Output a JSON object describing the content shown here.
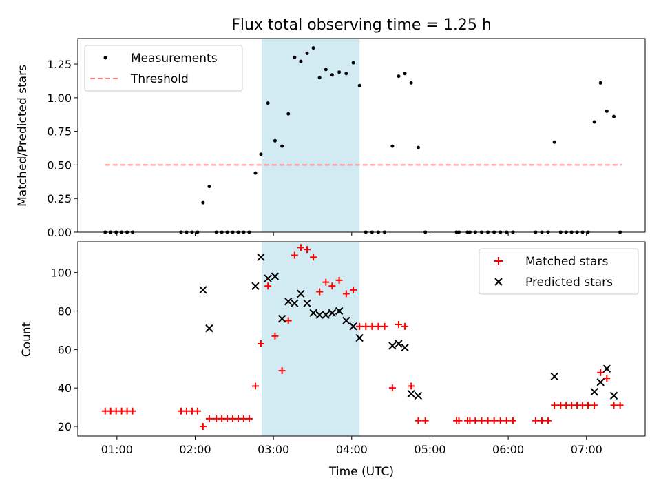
{
  "title": "Flux total observing time = 1.25 h",
  "colors": {
    "measurement": "#000000",
    "threshold": "#ff7f7f",
    "matched": "#ff0000",
    "predicted": "#000000",
    "shade": "#add8e6"
  },
  "chart_data": [
    {
      "type": "scatter",
      "panel": "top",
      "ylabel": "Matched/Predicted stars",
      "xlim": [
        0.5,
        7.75
      ],
      "ylim": [
        0,
        1.44
      ],
      "yticks": [
        0,
        0.25,
        0.5,
        0.75,
        1.0,
        1.25
      ],
      "ytick_labels": [
        "0.00",
        "0.25",
        "0.50",
        "0.75",
        "1.00",
        "1.25"
      ],
      "shaded_span": [
        2.85,
        4.1
      ],
      "legend": {
        "placement": "top-left",
        "entries": [
          "Measurements",
          "Threshold"
        ]
      },
      "threshold": {
        "value": 0.5,
        "x_range": [
          0.85,
          7.45
        ]
      },
      "series": [
        {
          "name": "Measurements",
          "marker": "dot",
          "points": [
            [
              0.85,
              0
            ],
            [
              0.92,
              0
            ],
            [
              0.99,
              0
            ],
            [
              1.06,
              0
            ],
            [
              1.13,
              0
            ],
            [
              1.2,
              0
            ],
            [
              1.82,
              0
            ],
            [
              1.89,
              0
            ],
            [
              1.96,
              0
            ],
            [
              2.03,
              0
            ],
            [
              2.1,
              0.22
            ],
            [
              2.18,
              0.34
            ],
            [
              2.27,
              0
            ],
            [
              2.34,
              0
            ],
            [
              2.41,
              0
            ],
            [
              2.48,
              0
            ],
            [
              2.55,
              0
            ],
            [
              2.62,
              0
            ],
            [
              2.69,
              0
            ],
            [
              2.77,
              0.44
            ],
            [
              2.84,
              0.58
            ],
            [
              2.93,
              0.96
            ],
            [
              3.02,
              0.68
            ],
            [
              3.11,
              0.64
            ],
            [
              3.19,
              0.88
            ],
            [
              3.27,
              1.3
            ],
            [
              3.35,
              1.27
            ],
            [
              3.43,
              1.33
            ],
            [
              3.51,
              1.37
            ],
            [
              3.59,
              1.15
            ],
            [
              3.67,
              1.21
            ],
            [
              3.75,
              1.17
            ],
            [
              3.84,
              1.19
            ],
            [
              3.93,
              1.18
            ],
            [
              4.02,
              1.26
            ],
            [
              4.1,
              1.09
            ],
            [
              4.18,
              0
            ],
            [
              4.26,
              0
            ],
            [
              4.34,
              0
            ],
            [
              4.42,
              0
            ],
            [
              4.52,
              0.64
            ],
            [
              4.6,
              1.16
            ],
            [
              4.68,
              1.18
            ],
            [
              4.76,
              1.11
            ],
            [
              4.85,
              0.63
            ],
            [
              4.94,
              0
            ],
            [
              5.34,
              0
            ],
            [
              5.37,
              0
            ],
            [
              5.48,
              0
            ],
            [
              5.51,
              0
            ],
            [
              5.58,
              0
            ],
            [
              5.66,
              0
            ],
            [
              5.74,
              0
            ],
            [
              5.82,
              0
            ],
            [
              5.9,
              0
            ],
            [
              5.98,
              0
            ],
            [
              6.06,
              0
            ],
            [
              6.35,
              0
            ],
            [
              6.43,
              0
            ],
            [
              6.51,
              0
            ],
            [
              6.59,
              0.67
            ],
            [
              6.67,
              0
            ],
            [
              6.74,
              0
            ],
            [
              6.81,
              0
            ],
            [
              6.88,
              0
            ],
            [
              6.95,
              0
            ],
            [
              7.02,
              0
            ],
            [
              7.1,
              0.82
            ],
            [
              7.18,
              1.11
            ],
            [
              7.26,
              0.9
            ],
            [
              7.35,
              0.86
            ],
            [
              7.43,
              0
            ]
          ]
        }
      ]
    },
    {
      "type": "scatter",
      "panel": "bottom",
      "xlabel": "Time (UTC)",
      "ylabel": "Count",
      "xlim": [
        0.5,
        7.75
      ],
      "ylim": [
        15,
        116
      ],
      "yticks": [
        20,
        40,
        60,
        80,
        100
      ],
      "xticks": [
        1,
        2,
        3,
        4,
        5,
        6,
        7
      ],
      "xtick_labels": [
        "01:00",
        "02:00",
        "03:00",
        "04:00",
        "05:00",
        "06:00",
        "07:00"
      ],
      "shaded_span": [
        2.85,
        4.1
      ],
      "legend": {
        "placement": "top-right",
        "entries": [
          "Matched stars",
          "Predicted stars"
        ]
      },
      "series": [
        {
          "name": "Matched stars",
          "marker": "plus",
          "points": [
            [
              0.85,
              28
            ],
            [
              0.92,
              28
            ],
            [
              0.99,
              28
            ],
            [
              1.06,
              28
            ],
            [
              1.13,
              28
            ],
            [
              1.2,
              28
            ],
            [
              1.82,
              28
            ],
            [
              1.89,
              28
            ],
            [
              1.96,
              28
            ],
            [
              2.03,
              28
            ],
            [
              2.1,
              20
            ],
            [
              2.18,
              24
            ],
            [
              2.27,
              24
            ],
            [
              2.34,
              24
            ],
            [
              2.41,
              24
            ],
            [
              2.48,
              24
            ],
            [
              2.55,
              24
            ],
            [
              2.62,
              24
            ],
            [
              2.69,
              24
            ],
            [
              2.77,
              41
            ],
            [
              2.84,
              63
            ],
            [
              2.93,
              93
            ],
            [
              3.02,
              67
            ],
            [
              3.11,
              49
            ],
            [
              3.19,
              75
            ],
            [
              3.27,
              109
            ],
            [
              3.35,
              113
            ],
            [
              3.43,
              112
            ],
            [
              3.51,
              108
            ],
            [
              3.59,
              90
            ],
            [
              3.67,
              95
            ],
            [
              3.75,
              93
            ],
            [
              3.84,
              96
            ],
            [
              3.93,
              89
            ],
            [
              4.02,
              91
            ],
            [
              4.1,
              72
            ],
            [
              4.18,
              72
            ],
            [
              4.26,
              72
            ],
            [
              4.34,
              72
            ],
            [
              4.42,
              72
            ],
            [
              4.52,
              40
            ],
            [
              4.6,
              73
            ],
            [
              4.68,
              72
            ],
            [
              4.76,
              41
            ],
            [
              4.85,
              23
            ],
            [
              4.94,
              23
            ],
            [
              5.34,
              23
            ],
            [
              5.37,
              23
            ],
            [
              5.48,
              23
            ],
            [
              5.51,
              23
            ],
            [
              5.58,
              23
            ],
            [
              5.66,
              23
            ],
            [
              5.74,
              23
            ],
            [
              5.82,
              23
            ],
            [
              5.9,
              23
            ],
            [
              5.98,
              23
            ],
            [
              6.06,
              23
            ],
            [
              6.35,
              23
            ],
            [
              6.43,
              23
            ],
            [
              6.51,
              23
            ],
            [
              6.59,
              31
            ],
            [
              6.67,
              31
            ],
            [
              6.74,
              31
            ],
            [
              6.81,
              31
            ],
            [
              6.88,
              31
            ],
            [
              6.95,
              31
            ],
            [
              7.02,
              31
            ],
            [
              7.1,
              31
            ],
            [
              7.18,
              48
            ],
            [
              7.26,
              45
            ],
            [
              7.35,
              31
            ],
            [
              7.43,
              31
            ]
          ]
        },
        {
          "name": "Predicted stars",
          "marker": "x",
          "points": [
            [
              2.1,
              91
            ],
            [
              2.18,
              71
            ],
            [
              2.77,
              93
            ],
            [
              2.84,
              108
            ],
            [
              2.93,
              97
            ],
            [
              3.02,
              98
            ],
            [
              3.11,
              76
            ],
            [
              3.19,
              85
            ],
            [
              3.27,
              84
            ],
            [
              3.35,
              89
            ],
            [
              3.43,
              84
            ],
            [
              3.51,
              79
            ],
            [
              3.59,
              78
            ],
            [
              3.67,
              78
            ],
            [
              3.75,
              79
            ],
            [
              3.84,
              80
            ],
            [
              3.93,
              75
            ],
            [
              4.02,
              72
            ],
            [
              4.1,
              66
            ],
            [
              4.52,
              62
            ],
            [
              4.6,
              63
            ],
            [
              4.68,
              61
            ],
            [
              4.76,
              37
            ],
            [
              4.85,
              36
            ],
            [
              6.59,
              46
            ],
            [
              7.1,
              38
            ],
            [
              7.18,
              43
            ],
            [
              7.26,
              50
            ],
            [
              7.35,
              36
            ]
          ]
        }
      ]
    }
  ]
}
